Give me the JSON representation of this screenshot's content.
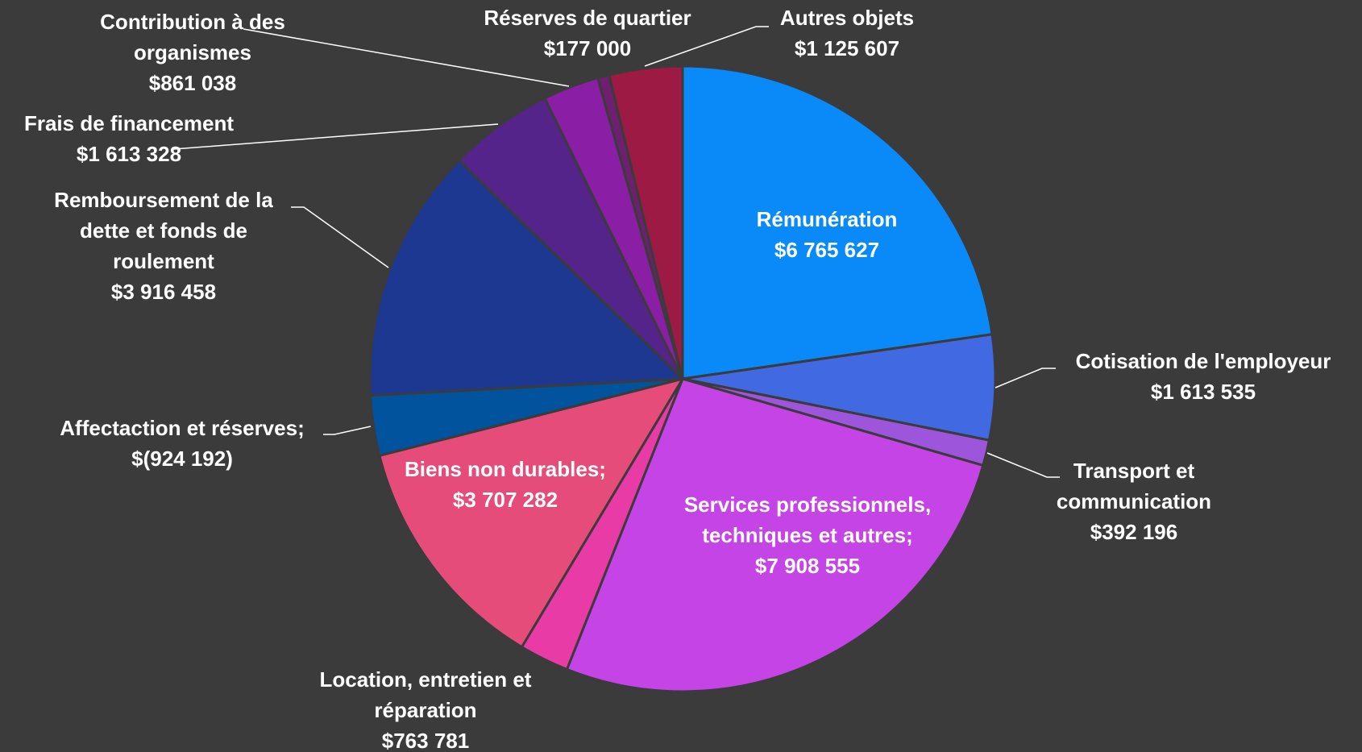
{
  "chart_data": {
    "type": "pie",
    "categories": [
      "Rémunération",
      "Cotisation de l'employeur",
      "Transport et communication",
      "Services professionnels, techniques et autres;",
      "Location, entretien et réparation",
      "Biens non durables;",
      "Affectaction et réserves;",
      "Remboursement de la dette et fonds de roulement",
      "Frais de financement",
      "Contribution à des organismes",
      "Réserves de quartier",
      "Autres objets"
    ],
    "values": [
      6765627,
      1613535,
      392196,
      7908555,
      763781,
      3707282,
      -924192,
      3916458,
      1613328,
      861038,
      177000,
      1125607
    ],
    "value_labels": [
      "$6 765 627",
      "$1 613 535",
      "$392 196",
      "$7 908 555",
      "$763 781",
      "$3 707 282",
      "$(924 192)",
      "$3 916 458",
      "$1 613 328",
      "$861 038",
      "$177 000",
      "$1 125 607"
    ],
    "colors": [
      "#0a8af8",
      "#4169e1",
      "#9d55dc",
      "#c544e6",
      "#e83ba6",
      "#e64c7a",
      "#00539c",
      "#1d3891",
      "#55248a",
      "#8a1fa6",
      "#6e1f70",
      "#9c1a44"
    ]
  }
}
